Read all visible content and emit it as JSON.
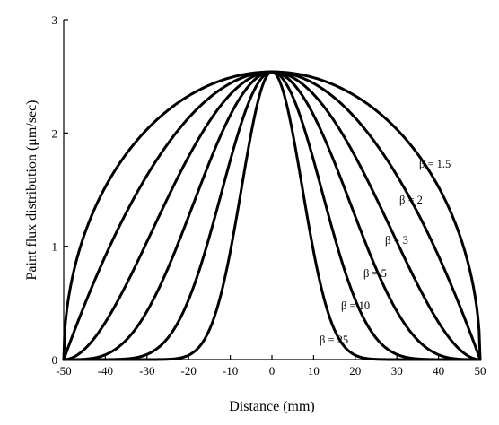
{
  "chart_data": {
    "type": "line",
    "title": "",
    "xlabel": "Distance (mm)",
    "ylabel": "Paint flux distribution (μm/sec)",
    "xlim": [
      -50,
      50
    ],
    "ylim": [
      0,
      3
    ],
    "xticks": [
      -50,
      -40,
      -30,
      -20,
      -10,
      0,
      10,
      20,
      30,
      40,
      50
    ],
    "yticks": [
      0,
      1,
      2,
      3
    ],
    "xtick_labels": [
      "-50",
      "-40",
      "-30",
      "-20",
      "-10",
      "0",
      "10",
      "20",
      "30",
      "40",
      "50"
    ],
    "ytick_labels": [
      "0",
      "1",
      "2",
      "3"
    ],
    "peak_value": 2.54,
    "half_width": 50,
    "grid": false,
    "legend": "none",
    "line_color": "#000000",
    "series": [
      {
        "name": "β = 1.5",
        "beta": 1.5
      },
      {
        "name": "β = 2",
        "beta": 2
      },
      {
        "name": "β = 3",
        "beta": 3
      },
      {
        "name": "β = 5",
        "beta": 5
      },
      {
        "name": "β = 10",
        "beta": 10
      },
      {
        "name": "β = 25",
        "beta": 25
      }
    ]
  }
}
